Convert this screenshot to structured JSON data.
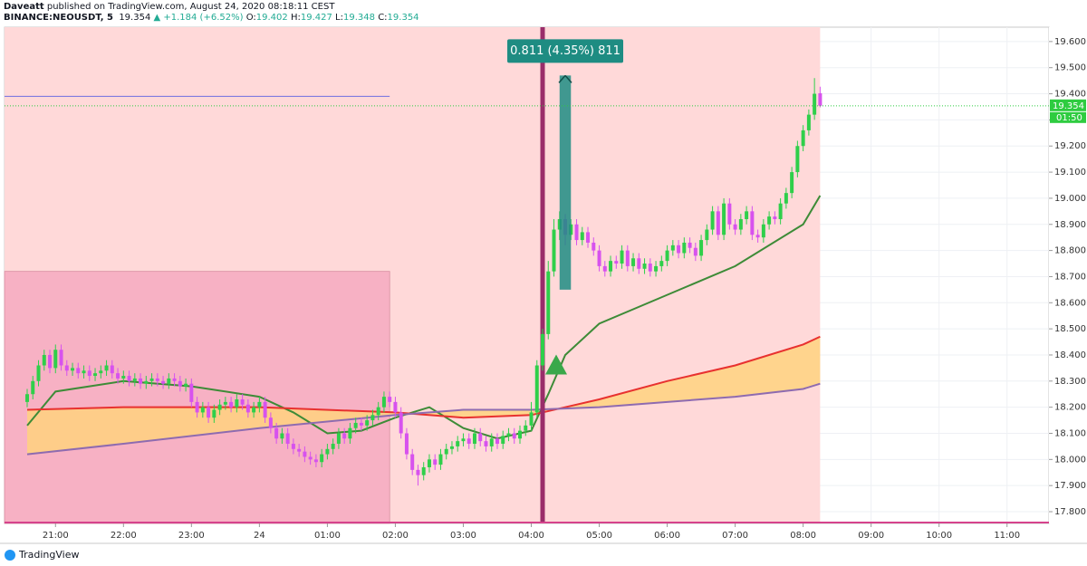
{
  "header": {
    "publisher": "Daveatt",
    "published_line": "published on TradingView.com, August 24, 2020 08:18:11 CEST",
    "symbol": "BINANCE:NEOUSDT, 5",
    "price": "19.354",
    "change": "▲ +1.184 (+6.52%)",
    "ohlc": [
      {
        "key": "O:",
        "value": "19.402"
      },
      {
        "key": "H:",
        "value": "19.427"
      },
      {
        "key": "L:",
        "value": "19.348"
      },
      {
        "key": "C:",
        "value": "19.354"
      }
    ]
  },
  "footer": {
    "brand": "TradingView"
  },
  "chart_data": {
    "type": "candlestick",
    "up_color": "#2fcf4a",
    "down_color": "#d752ee",
    "grid": true,
    "xlim": [
      15,
      937
    ],
    "ylim": [
      17.755,
      19.655
    ],
    "xticks": [
      {
        "value": 60,
        "label": "21:00"
      },
      {
        "value": 120,
        "label": "22:00"
      },
      {
        "value": 180,
        "label": "23:00"
      },
      {
        "value": 240,
        "label": "24"
      },
      {
        "value": 300,
        "label": "01:00"
      },
      {
        "value": 360,
        "label": "02:00"
      },
      {
        "value": 420,
        "label": "03:00"
      },
      {
        "value": 480,
        "label": "04:00"
      },
      {
        "value": 540,
        "label": "05:00"
      },
      {
        "value": 600,
        "label": "06:00"
      },
      {
        "value": 660,
        "label": "07:00"
      },
      {
        "value": 720,
        "label": "08:00"
      },
      {
        "value": 780,
        "label": "09:00"
      },
      {
        "value": 840,
        "label": "10:00"
      },
      {
        "value": 900,
        "label": "11:00"
      }
    ],
    "yticks": [
      {
        "value": 17.8,
        "label": "17.800"
      },
      {
        "value": 17.9,
        "label": "17.900"
      },
      {
        "value": 18.0,
        "label": "18.000"
      },
      {
        "value": 18.1,
        "label": "18.100"
      },
      {
        "value": 18.2,
        "label": "18.200"
      },
      {
        "value": 18.3,
        "label": "18.300"
      },
      {
        "value": 18.4,
        "label": "18.400"
      },
      {
        "value": 18.5,
        "label": "18.500"
      },
      {
        "value": 18.6,
        "label": "18.600"
      },
      {
        "value": 18.7,
        "label": "18.700"
      },
      {
        "value": 18.8,
        "label": "18.800"
      },
      {
        "value": 18.9,
        "label": "18.900"
      },
      {
        "value": 19.0,
        "label": "19.000"
      },
      {
        "value": 19.1,
        "label": "19.100"
      },
      {
        "value": 19.2,
        "label": "19.200"
      },
      {
        "value": 19.3,
        "label": "19.300"
      },
      {
        "value": 19.4,
        "label": "19.400"
      },
      {
        "value": 19.5,
        "label": "19.500"
      },
      {
        "value": 19.6,
        "label": "19.600"
      }
    ],
    "x": [
      35,
      40,
      45,
      50,
      55,
      60,
      65,
      70,
      75,
      80,
      85,
      90,
      95,
      100,
      105,
      110,
      115,
      120,
      125,
      130,
      135,
      140,
      145,
      150,
      155,
      160,
      165,
      170,
      175,
      180,
      185,
      190,
      195,
      200,
      205,
      210,
      215,
      220,
      225,
      230,
      235,
      240,
      245,
      250,
      255,
      260,
      265,
      270,
      275,
      280,
      285,
      290,
      295,
      300,
      305,
      310,
      315,
      320,
      325,
      330,
      335,
      340,
      345,
      350,
      355,
      360,
      365,
      370,
      375,
      380,
      385,
      390,
      395,
      400,
      405,
      410,
      415,
      420,
      425,
      430,
      435,
      440,
      445,
      450,
      455,
      460,
      465,
      470,
      475,
      480,
      485,
      490,
      495,
      500,
      505,
      510,
      515,
      520,
      525,
      530,
      535,
      540,
      545,
      550,
      555,
      560,
      565,
      570,
      575,
      580,
      585,
      590,
      595,
      600,
      605,
      610,
      615,
      620,
      625,
      630,
      635,
      640,
      645,
      650,
      655,
      660,
      665,
      670,
      675,
      680,
      685,
      690,
      695,
      700,
      705,
      710,
      715,
      720,
      725,
      730,
      735
    ],
    "open": [
      18.22,
      18.25,
      18.3,
      18.36,
      18.4,
      18.35,
      18.42,
      18.36,
      18.34,
      18.35,
      18.33,
      18.34,
      18.32,
      18.33,
      18.34,
      18.36,
      18.33,
      18.31,
      18.32,
      18.3,
      18.31,
      18.29,
      18.3,
      18.31,
      18.3,
      18.29,
      18.31,
      18.3,
      18.28,
      18.29,
      18.22,
      18.18,
      18.2,
      18.16,
      18.19,
      18.21,
      18.22,
      18.2,
      18.23,
      18.21,
      18.18,
      18.2,
      18.22,
      18.16,
      18.12,
      18.08,
      18.1,
      18.06,
      18.04,
      18.03,
      18.01,
      18.0,
      17.99,
      18.02,
      18.04,
      18.06,
      18.1,
      18.08,
      18.12,
      18.14,
      18.13,
      18.15,
      18.17,
      18.2,
      18.24,
      18.22,
      18.18,
      18.1,
      18.02,
      17.96,
      17.94,
      17.97,
      18.0,
      17.98,
      18.02,
      18.04,
      18.05,
      18.07,
      18.08,
      18.06,
      18.1,
      18.07,
      18.05,
      18.08,
      18.06,
      18.09,
      18.1,
      18.08,
      18.11,
      18.13,
      18.18,
      18.36,
      18.48,
      18.72,
      18.88,
      18.92,
      18.86,
      18.9,
      18.84,
      18.87,
      18.83,
      18.8,
      18.74,
      18.72,
      18.76,
      18.75,
      18.8,
      18.74,
      18.77,
      18.73,
      18.75,
      18.72,
      18.74,
      18.76,
      18.8,
      18.82,
      18.79,
      18.83,
      18.81,
      18.78,
      18.84,
      18.88,
      18.95,
      18.86,
      18.98,
      18.9,
      18.88,
      18.92,
      18.95,
      18.86,
      18.85,
      18.9,
      18.93,
      18.92,
      18.98,
      19.02,
      19.1,
      19.2,
      19.26,
      19.32,
      19.402
    ],
    "high": [
      18.27,
      18.32,
      18.38,
      18.42,
      18.42,
      18.44,
      18.44,
      18.38,
      18.37,
      18.37,
      18.36,
      18.36,
      18.35,
      18.36,
      18.38,
      18.38,
      18.35,
      18.34,
      18.34,
      18.33,
      18.33,
      18.32,
      18.33,
      18.33,
      18.32,
      18.33,
      18.33,
      18.32,
      18.31,
      18.31,
      18.24,
      18.22,
      18.22,
      18.21,
      18.23,
      18.24,
      18.24,
      18.25,
      18.25,
      18.23,
      18.22,
      18.24,
      18.24,
      18.18,
      18.14,
      18.12,
      18.12,
      18.08,
      18.06,
      18.05,
      18.03,
      18.02,
      18.04,
      18.06,
      18.08,
      18.12,
      18.12,
      18.14,
      18.16,
      18.16,
      18.17,
      18.19,
      18.22,
      18.26,
      18.26,
      18.24,
      18.2,
      18.12,
      18.04,
      17.98,
      17.99,
      18.02,
      18.02,
      18.04,
      18.06,
      18.07,
      18.09,
      18.1,
      18.1,
      18.12,
      18.12,
      18.09,
      18.1,
      18.1,
      18.11,
      18.12,
      18.12,
      18.13,
      18.15,
      18.22,
      18.38,
      18.5,
      18.76,
      18.92,
      18.95,
      18.94,
      18.92,
      18.92,
      18.89,
      18.89,
      18.85,
      18.82,
      18.76,
      18.78,
      18.78,
      18.82,
      18.82,
      18.79,
      18.79,
      18.77,
      18.77,
      18.76,
      18.78,
      18.82,
      18.84,
      18.84,
      18.85,
      18.85,
      18.83,
      18.86,
      18.9,
      18.97,
      18.97,
      19.0,
      19.0,
      18.92,
      18.94,
      18.97,
      18.97,
      18.88,
      18.92,
      18.95,
      18.95,
      19.0,
      19.04,
      19.12,
      19.22,
      19.28,
      19.34,
      19.46,
      19.427
    ],
    "low": [
      18.2,
      18.23,
      18.28,
      18.34,
      18.33,
      18.33,
      18.34,
      18.32,
      18.32,
      18.31,
      18.31,
      18.3,
      18.3,
      18.31,
      18.32,
      18.31,
      18.29,
      18.29,
      18.28,
      18.28,
      18.27,
      18.27,
      18.28,
      18.28,
      18.27,
      18.27,
      18.28,
      18.26,
      18.26,
      18.2,
      18.16,
      18.16,
      18.14,
      18.14,
      18.17,
      18.19,
      18.18,
      18.18,
      18.19,
      18.16,
      18.16,
      18.18,
      18.14,
      18.1,
      18.06,
      18.06,
      18.04,
      18.02,
      18.01,
      17.99,
      17.98,
      17.97,
      17.97,
      18.0,
      18.02,
      18.04,
      18.06,
      18.06,
      18.1,
      18.11,
      18.11,
      18.13,
      18.15,
      18.18,
      18.2,
      18.16,
      18.08,
      18.0,
      17.94,
      17.9,
      17.92,
      17.95,
      17.96,
      17.96,
      18.0,
      18.02,
      18.03,
      18.05,
      18.04,
      18.04,
      18.05,
      18.03,
      18.03,
      18.04,
      18.04,
      18.07,
      18.06,
      18.06,
      18.09,
      18.11,
      18.16,
      18.34,
      18.46,
      18.7,
      18.84,
      18.82,
      18.84,
      18.82,
      18.82,
      18.81,
      18.78,
      18.72,
      18.7,
      18.7,
      18.73,
      18.73,
      18.72,
      18.72,
      18.71,
      18.71,
      18.7,
      18.7,
      18.72,
      18.74,
      18.78,
      18.77,
      18.77,
      18.79,
      18.76,
      18.76,
      18.82,
      18.86,
      18.84,
      18.84,
      18.88,
      18.86,
      18.86,
      18.9,
      18.84,
      18.83,
      18.83,
      18.88,
      18.9,
      18.9,
      18.96,
      19.0,
      19.08,
      19.18,
      19.24,
      19.3,
      19.348
    ],
    "close": [
      18.25,
      18.3,
      18.36,
      18.4,
      18.35,
      18.42,
      18.36,
      18.34,
      18.35,
      18.33,
      18.34,
      18.32,
      18.33,
      18.34,
      18.36,
      18.33,
      18.31,
      18.32,
      18.3,
      18.31,
      18.29,
      18.3,
      18.31,
      18.3,
      18.29,
      18.31,
      18.3,
      18.28,
      18.29,
      18.22,
      18.18,
      18.2,
      18.16,
      18.19,
      18.21,
      18.22,
      18.2,
      18.23,
      18.21,
      18.18,
      18.2,
      18.22,
      18.16,
      18.12,
      18.08,
      18.1,
      18.06,
      18.04,
      18.03,
      18.01,
      18.0,
      17.99,
      18.02,
      18.04,
      18.06,
      18.1,
      18.08,
      18.12,
      18.14,
      18.13,
      18.15,
      18.17,
      18.2,
      18.24,
      18.22,
      18.18,
      18.1,
      18.02,
      17.96,
      17.94,
      17.97,
      18.0,
      17.98,
      18.02,
      18.04,
      18.05,
      18.07,
      18.08,
      18.06,
      18.1,
      18.07,
      18.05,
      18.08,
      18.06,
      18.09,
      18.1,
      18.08,
      18.11,
      18.13,
      18.18,
      18.36,
      18.48,
      18.72,
      18.88,
      18.92,
      18.86,
      18.9,
      18.84,
      18.87,
      18.83,
      18.8,
      18.74,
      18.72,
      18.76,
      18.75,
      18.8,
      18.74,
      18.77,
      18.73,
      18.75,
      18.72,
      18.74,
      18.76,
      18.8,
      18.82,
      18.79,
      18.83,
      18.81,
      18.78,
      18.84,
      18.88,
      18.95,
      18.86,
      18.98,
      18.9,
      18.88,
      18.92,
      18.95,
      18.86,
      18.85,
      18.9,
      18.93,
      18.92,
      18.98,
      19.02,
      19.1,
      19.2,
      19.26,
      19.32,
      19.4,
      19.354
    ],
    "lines": [
      {
        "color": "#3d8b37",
        "x": [
          35,
          60,
          120,
          180,
          240,
          270,
          300,
          330,
          360,
          390,
          420,
          450,
          480,
          495,
          510,
          540,
          600,
          660,
          720,
          735
        ],
        "values": [
          18.13,
          18.26,
          18.3,
          18.28,
          18.24,
          18.18,
          18.1,
          18.11,
          18.16,
          18.2,
          18.12,
          18.08,
          18.11,
          18.25,
          18.4,
          18.52,
          18.63,
          18.74,
          18.9,
          19.01
        ]
      },
      {
        "color": "#e8312f",
        "x": [
          35,
          120,
          240,
          360,
          420,
          480,
          540,
          600,
          660,
          720,
          735
        ],
        "values": [
          18.19,
          18.2,
          18.2,
          18.18,
          18.16,
          18.17,
          18.23,
          18.3,
          18.36,
          18.44,
          18.47
        ]
      },
      {
        "color": "#8e6bb0",
        "x": [
          35,
          120,
          240,
          360,
          420,
          480,
          540,
          600,
          660,
          720,
          735
        ],
        "values": [
          18.02,
          18.06,
          18.12,
          18.17,
          18.19,
          18.19,
          18.2,
          18.22,
          18.24,
          18.27,
          18.29
        ]
      }
    ],
    "band_color": "#ffd27f",
    "session_shade": {
      "x_end": 735,
      "color": "#ffd9d9"
    },
    "box": {
      "x_end": 355,
      "top": 18.72,
      "color": "#f7b1c4"
    },
    "hline": {
      "value": 19.39,
      "x_end": 355,
      "color": "#6f6fe0"
    },
    "vline": {
      "x": 490,
      "color": "#9a2d6a"
    },
    "measure": {
      "x": [
        505,
        515
      ],
      "from": 18.65,
      "to": 19.47,
      "label": "0.811 (4.35%) 811",
      "color": "#1e8c82"
    },
    "marker": {
      "x": 502,
      "y": 18.36,
      "color": "#3aa84a"
    },
    "last_price": {
      "value": 19.354,
      "timer": "01:50",
      "color": "#2ecc40"
    }
  }
}
